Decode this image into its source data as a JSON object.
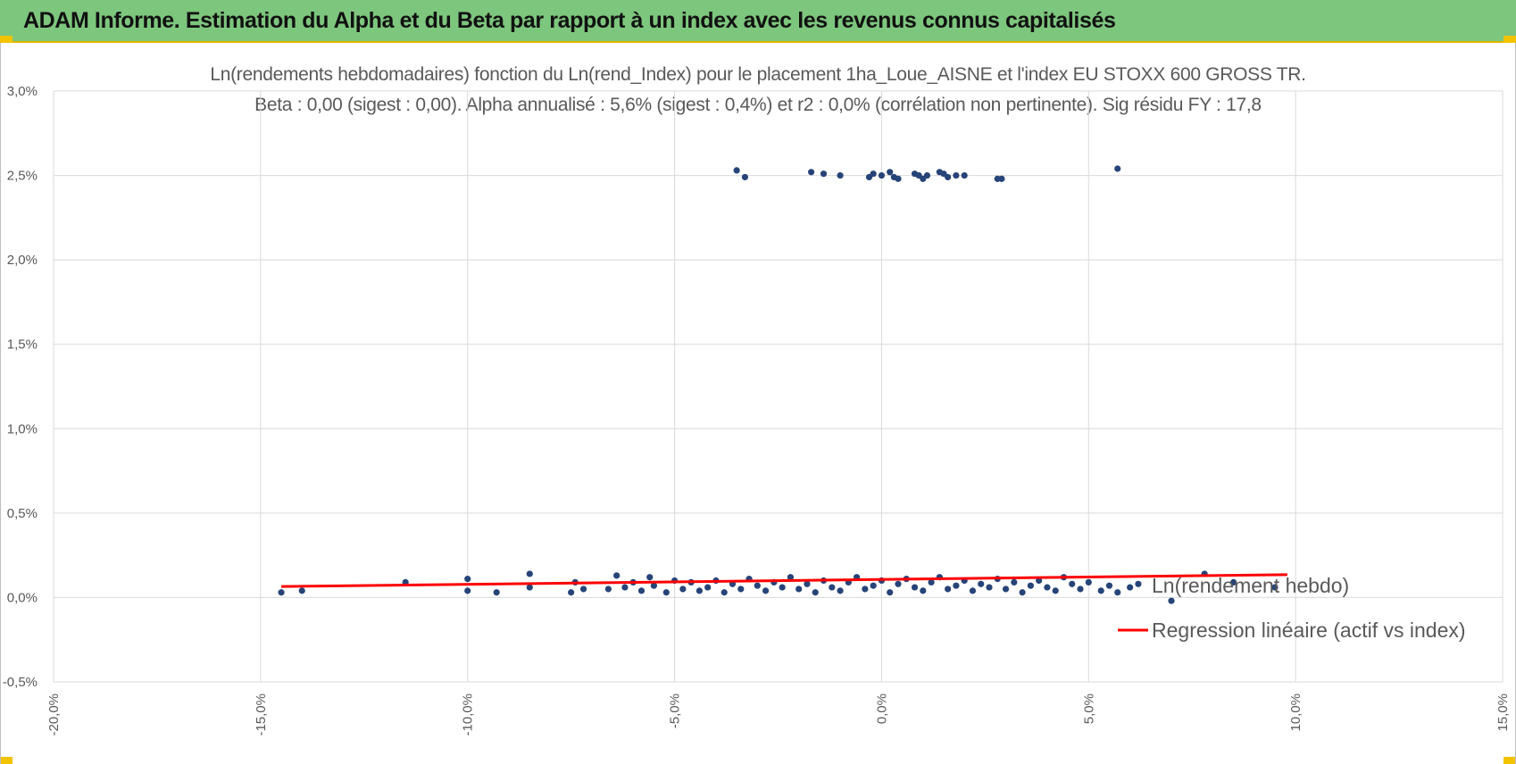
{
  "header": {
    "title": "ADAM Informe. Estimation du Alpha et du Beta par rapport à un index avec les revenus connus capitalisés"
  },
  "colors": {
    "banner": "#7dc67d",
    "points": "#264478",
    "regression": "#ff0000",
    "grid": "#d9d9d9"
  },
  "chart_data": {
    "type": "scatter",
    "title": "Ln(rendements hebdomadaires) fonction du Ln(rend_Index) pour le placement 1ha_Loue_AISNE et l'index EU STOXX 600 GROSS TR.",
    "subtitle": "Beta : 0,00 (sigest : 0,00).  Alpha annualisé : 5,6% (sigest : 0,4%) et r2 : 0,0% (corrélation non pertinente). Sig résidu FY : 17,8",
    "xlabel": "",
    "ylabel": "",
    "xlim": [
      -0.2,
      0.15
    ],
    "ylim": [
      -0.005,
      0.03
    ],
    "x_ticks": [
      -0.2,
      -0.15,
      -0.1,
      -0.05,
      0.0,
      0.05,
      0.1,
      0.15
    ],
    "x_tick_labels": [
      "-20,0%",
      "-15,0%",
      "-10,0%",
      "-5,0%",
      "0,0%",
      "5,0%",
      "10,0%",
      "15,0%"
    ],
    "y_ticks": [
      -0.005,
      0.0,
      0.005,
      0.01,
      0.015,
      0.02,
      0.025,
      0.03
    ],
    "y_tick_labels": [
      "-0,5%",
      "0,0%",
      "0,5%",
      "1,0%",
      "1,5%",
      "2,0%",
      "2,5%",
      "3,0%"
    ],
    "grid": true,
    "legend_position": "right",
    "series": [
      {
        "name": "Ln(rendement hebdo)",
        "kind": "points",
        "x": [
          -0.145,
          -0.14,
          -0.115,
          -0.1,
          -0.1,
          -0.093,
          -0.085,
          -0.085,
          -0.075,
          -0.074,
          -0.072,
          -0.066,
          -0.064,
          -0.062,
          -0.06,
          -0.058,
          -0.056,
          -0.055,
          -0.052,
          -0.05,
          -0.048,
          -0.046,
          -0.044,
          -0.042,
          -0.04,
          -0.038,
          -0.036,
          -0.034,
          -0.032,
          -0.03,
          -0.028,
          -0.026,
          -0.024,
          -0.022,
          -0.02,
          -0.018,
          -0.016,
          -0.014,
          -0.012,
          -0.01,
          -0.008,
          -0.006,
          -0.004,
          -0.002,
          0.0,
          0.002,
          0.004,
          0.006,
          0.008,
          0.01,
          0.012,
          0.014,
          0.016,
          0.018,
          0.02,
          0.022,
          0.024,
          0.026,
          0.028,
          0.03,
          0.032,
          0.034,
          0.036,
          0.038,
          0.04,
          0.042,
          0.044,
          0.046,
          0.048,
          0.05,
          0.053,
          0.055,
          0.057,
          0.06,
          0.062,
          0.07,
          0.078,
          0.085,
          0.095,
          -0.035,
          -0.033,
          -0.017,
          -0.014,
          -0.01,
          -0.003,
          -0.002,
          0.0,
          0.002,
          0.003,
          0.004,
          0.008,
          0.009,
          0.01,
          0.011,
          0.014,
          0.015,
          0.016,
          0.018,
          0.02,
          0.028,
          0.029,
          0.057
        ],
        "y": [
          0.0003,
          0.0004,
          0.0009,
          0.0004,
          0.0011,
          0.0003,
          0.0006,
          0.0014,
          0.0003,
          0.0009,
          0.0005,
          0.0005,
          0.0013,
          0.0006,
          0.0009,
          0.0004,
          0.0012,
          0.0007,
          0.0003,
          0.001,
          0.0005,
          0.0009,
          0.0004,
          0.0006,
          0.001,
          0.0003,
          0.0008,
          0.0005,
          0.0011,
          0.0007,
          0.0004,
          0.0009,
          0.0006,
          0.0012,
          0.0005,
          0.0008,
          0.0003,
          0.001,
          0.0006,
          0.0004,
          0.0009,
          0.0012,
          0.0005,
          0.0007,
          0.001,
          0.0003,
          0.0008,
          0.0011,
          0.0006,
          0.0004,
          0.0009,
          0.0012,
          0.0005,
          0.0007,
          0.001,
          0.0004,
          0.0008,
          0.0006,
          0.0011,
          0.0005,
          0.0009,
          0.0003,
          0.0007,
          0.001,
          0.0006,
          0.0004,
          0.0012,
          0.0008,
          0.0005,
          0.0009,
          0.0004,
          0.0007,
          0.0003,
          0.0006,
          0.0008,
          -0.0002,
          0.0014,
          0.0009,
          0.0006,
          0.0253,
          0.0249,
          0.0252,
          0.0251,
          0.025,
          0.0249,
          0.0251,
          0.025,
          0.0252,
          0.0249,
          0.0248,
          0.0251,
          0.025,
          0.0248,
          0.025,
          0.0252,
          0.0251,
          0.0249,
          0.025,
          0.025,
          0.0248,
          0.0248,
          0.0254
        ]
      },
      {
        "name": "Regression linéaire (actif vs index)",
        "kind": "line",
        "x": [
          -0.145,
          0.098
        ],
        "y": [
          0.00065,
          0.00135
        ]
      }
    ]
  }
}
